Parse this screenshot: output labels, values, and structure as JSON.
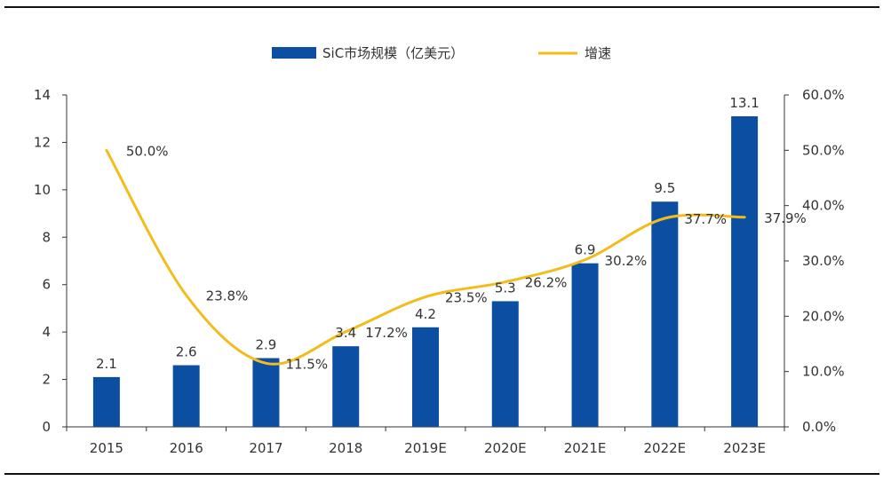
{
  "chart_data": {
    "type": "bar",
    "title": "",
    "xlabel": "",
    "categories": [
      "2015",
      "2016",
      "2017",
      "2018",
      "2019E",
      "2020E",
      "2021E",
      "2022E",
      "2023E"
    ],
    "series": [
      {
        "name": "SiC市场规模（亿美元）",
        "type": "bar",
        "axis": "left",
        "color": "#0b4ea2",
        "values": [
          2.1,
          2.6,
          2.9,
          3.4,
          4.2,
          5.3,
          6.9,
          9.5,
          13.1
        ],
        "labels": [
          "2.1",
          "2.6",
          "2.9",
          "3.4",
          "4.2",
          "5.3",
          "6.9",
          "9.5",
          "13.1"
        ]
      },
      {
        "name": "增速",
        "type": "line",
        "axis": "right",
        "color": "#f2bd1c",
        "values": [
          50.0,
          23.8,
          11.5,
          17.2,
          23.5,
          26.2,
          30.2,
          37.7,
          37.9
        ],
        "labels": [
          "50.0%",
          "23.8%",
          "11.5%",
          "17.2%",
          "23.5%",
          "26.2%",
          "30.2%",
          "37.7%",
          "37.9%"
        ]
      }
    ],
    "y_left": {
      "min": 0,
      "max": 14,
      "ticks": [
        "0",
        "2",
        "4",
        "6",
        "8",
        "10",
        "12",
        "14"
      ]
    },
    "y_right": {
      "min": 0,
      "max": 60,
      "ticks": [
        "0.0%",
        "10.0%",
        "20.0%",
        "30.0%",
        "40.0%",
        "50.0%",
        "60.0%"
      ]
    },
    "grid": false,
    "legend": "top-center"
  }
}
